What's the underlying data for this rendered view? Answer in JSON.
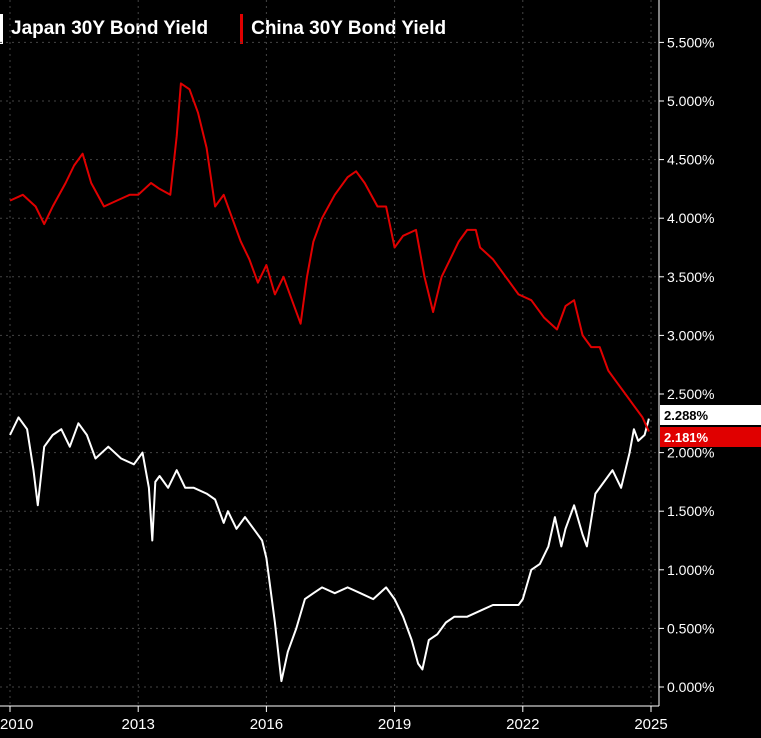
{
  "legend": {
    "japan": "Japan 30Y Bond Yield",
    "china": "China 30Y Bond Yield"
  },
  "colors": {
    "japan": "#ffffff",
    "china": "#e00000",
    "background": "#000000",
    "grid": "#444444"
  },
  "last_values": {
    "japan": "2.288%",
    "china": "2.181%"
  },
  "chart_data": {
    "type": "line",
    "title": "",
    "xlabel": "",
    "ylabel": "",
    "xlim": [
      2010.0,
      2025.0
    ],
    "ylim": [
      -0.1,
      5.85
    ],
    "x_ticks": [
      "2010",
      "2013",
      "2016",
      "2019",
      "2022",
      "2025"
    ],
    "y_ticks": [
      "0.000%",
      "0.500%",
      "1.000%",
      "1.500%",
      "2.000%",
      "2.500%",
      "3.000%",
      "3.500%",
      "4.000%",
      "4.500%",
      "5.000%",
      "5.500%"
    ],
    "grid": true,
    "legend_position": "top-left",
    "series": [
      {
        "name": "Japan 30Y Bond Yield",
        "x": [
          2010.0,
          2010.2,
          2010.4,
          2010.55,
          2010.65,
          2010.8,
          2011.0,
          2011.2,
          2011.4,
          2011.6,
          2011.8,
          2012.0,
          2012.3,
          2012.6,
          2012.9,
          2013.1,
          2013.25,
          2013.33,
          2013.4,
          2013.5,
          2013.7,
          2013.9,
          2014.1,
          2014.3,
          2014.6,
          2014.8,
          2015.0,
          2015.1,
          2015.3,
          2015.5,
          2015.7,
          2015.9,
          2016.0,
          2016.2,
          2016.35,
          2016.5,
          2016.7,
          2016.9,
          2017.1,
          2017.3,
          2017.6,
          2017.9,
          2018.2,
          2018.5,
          2018.8,
          2019.0,
          2019.2,
          2019.4,
          2019.55,
          2019.65,
          2019.8,
          2020.0,
          2020.2,
          2020.4,
          2020.7,
          2021.0,
          2021.3,
          2021.6,
          2021.9,
          2022.0,
          2022.2,
          2022.4,
          2022.6,
          2022.75,
          2022.9,
          2023.0,
          2023.2,
          2023.4,
          2023.5,
          2023.7,
          2023.9,
          2024.1,
          2024.3,
          2024.5,
          2024.6,
          2024.7,
          2024.85,
          2024.95
        ],
        "values": [
          2.15,
          2.3,
          2.2,
          1.85,
          1.55,
          2.05,
          2.15,
          2.2,
          2.05,
          2.25,
          2.15,
          1.95,
          2.05,
          1.95,
          1.9,
          2.0,
          1.7,
          1.25,
          1.75,
          1.8,
          1.7,
          1.85,
          1.7,
          1.7,
          1.65,
          1.6,
          1.4,
          1.5,
          1.35,
          1.45,
          1.35,
          1.25,
          1.1,
          0.55,
          0.05,
          0.3,
          0.5,
          0.75,
          0.8,
          0.85,
          0.8,
          0.85,
          0.8,
          0.75,
          0.85,
          0.75,
          0.6,
          0.4,
          0.2,
          0.15,
          0.4,
          0.45,
          0.55,
          0.6,
          0.6,
          0.65,
          0.7,
          0.7,
          0.7,
          0.75,
          1.0,
          1.05,
          1.2,
          1.45,
          1.2,
          1.35,
          1.55,
          1.3,
          1.2,
          1.65,
          1.75,
          1.85,
          1.7,
          2.0,
          2.2,
          2.1,
          2.15,
          2.29
        ]
      },
      {
        "name": "China 30Y Bond Yield",
        "x": [
          2010.0,
          2010.3,
          2010.6,
          2010.8,
          2011.0,
          2011.3,
          2011.5,
          2011.7,
          2011.9,
          2012.2,
          2012.5,
          2012.8,
          2013.0,
          2013.3,
          2013.5,
          2013.75,
          2013.9,
          2014.0,
          2014.2,
          2014.4,
          2014.6,
          2014.8,
          2015.0,
          2015.2,
          2015.4,
          2015.6,
          2015.8,
          2016.0,
          2016.2,
          2016.4,
          2016.6,
          2016.8,
          2016.95,
          2017.1,
          2017.3,
          2017.6,
          2017.9,
          2018.1,
          2018.3,
          2018.6,
          2018.8,
          2019.0,
          2019.2,
          2019.5,
          2019.7,
          2019.9,
          2020.1,
          2020.3,
          2020.5,
          2020.7,
          2020.9,
          2021.0,
          2021.3,
          2021.6,
          2021.9,
          2022.2,
          2022.5,
          2022.8,
          2023.0,
          2023.2,
          2023.4,
          2023.6,
          2023.8,
          2024.0,
          2024.2,
          2024.4,
          2024.6,
          2024.8,
          2024.95
        ],
        "values": [
          4.15,
          4.2,
          4.1,
          3.95,
          4.1,
          4.3,
          4.45,
          4.55,
          4.3,
          4.1,
          4.15,
          4.2,
          4.2,
          4.3,
          4.25,
          4.2,
          4.7,
          5.15,
          5.1,
          4.9,
          4.6,
          4.1,
          4.2,
          4.0,
          3.8,
          3.65,
          3.45,
          3.6,
          3.35,
          3.5,
          3.3,
          3.1,
          3.5,
          3.8,
          4.0,
          4.2,
          4.35,
          4.4,
          4.3,
          4.1,
          4.1,
          3.75,
          3.85,
          3.9,
          3.5,
          3.2,
          3.5,
          3.65,
          3.8,
          3.9,
          3.9,
          3.75,
          3.65,
          3.5,
          3.35,
          3.3,
          3.15,
          3.05,
          3.25,
          3.3,
          3.0,
          2.9,
          2.9,
          2.7,
          2.6,
          2.5,
          2.4,
          2.3,
          2.18
        ]
      }
    ]
  }
}
